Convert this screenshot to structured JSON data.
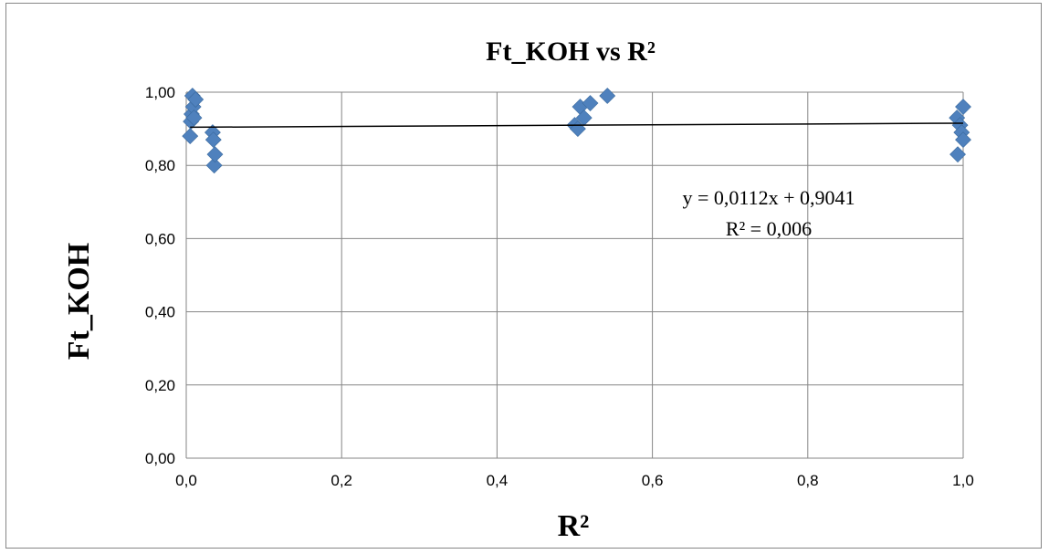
{
  "chart_data": {
    "type": "scatter",
    "title": "Ft_KOH vs R²",
    "xlabel": "R²",
    "ylabel": "Ft_KOH",
    "xlim": [
      0,
      1
    ],
    "ylim": [
      0,
      1
    ],
    "x_ticks": [
      "0,0",
      "0,2",
      "0,4",
      "0,6",
      "0,8",
      "1,0"
    ],
    "y_ticks": [
      "0,00",
      "0,20",
      "0,40",
      "0,60",
      "0,80",
      "1,00"
    ],
    "grid": true,
    "marker_color": "#4F81BD",
    "trendline_color": "#000000",
    "points": [
      {
        "x": 0.005,
        "y": 0.88
      },
      {
        "x": 0.006,
        "y": 0.92
      },
      {
        "x": 0.007,
        "y": 0.94
      },
      {
        "x": 0.008,
        "y": 0.99
      },
      {
        "x": 0.009,
        "y": 0.96
      },
      {
        "x": 0.01,
        "y": 0.93
      },
      {
        "x": 0.012,
        "y": 0.98
      },
      {
        "x": 0.034,
        "y": 0.89
      },
      {
        "x": 0.035,
        "y": 0.87
      },
      {
        "x": 0.036,
        "y": 0.8
      },
      {
        "x": 0.037,
        "y": 0.83
      },
      {
        "x": 0.5,
        "y": 0.91
      },
      {
        "x": 0.504,
        "y": 0.9
      },
      {
        "x": 0.507,
        "y": 0.96
      },
      {
        "x": 0.512,
        "y": 0.93
      },
      {
        "x": 0.52,
        "y": 0.97
      },
      {
        "x": 0.542,
        "y": 0.99
      },
      {
        "x": 0.992,
        "y": 0.93
      },
      {
        "x": 0.993,
        "y": 0.83
      },
      {
        "x": 0.996,
        "y": 0.91
      },
      {
        "x": 0.998,
        "y": 0.89
      },
      {
        "x": 1.0,
        "y": 0.87
      },
      {
        "x": 1.0,
        "y": 0.96
      }
    ],
    "trendline": {
      "slope": 0.0112,
      "intercept": 0.9041,
      "equation": "y = 0,0112x + 0,9041",
      "r_squared": "R² = 0,006"
    }
  }
}
